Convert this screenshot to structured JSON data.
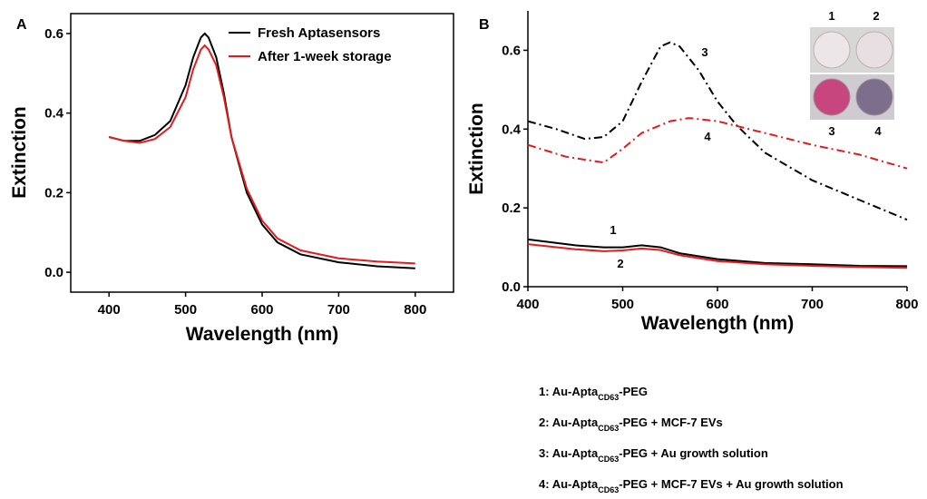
{
  "chart_data": [
    {
      "type": "line",
      "panel": "A",
      "x_label": "Wavelength (nm)",
      "y_label": "Extinction",
      "xlim": [
        350,
        850
      ],
      "ylim": [
        -0.05,
        0.65
      ],
      "xticks": [
        400,
        500,
        600,
        700,
        800
      ],
      "yticks": [
        {
          "value": 0,
          "label": "0.0"
        },
        0.2,
        0.4,
        0.6
      ],
      "axes_box": true,
      "legend": "upper right",
      "series": [
        {
          "name": "Fresh Aptasensors",
          "color": "#000000",
          "style": "solid",
          "x": [
            400,
            420,
            440,
            460,
            480,
            500,
            510,
            520,
            525,
            530,
            540,
            550,
            560,
            580,
            600,
            620,
            650,
            700,
            750,
            800
          ],
          "values": [
            0.34,
            0.33,
            0.33,
            0.345,
            0.38,
            0.47,
            0.54,
            0.59,
            0.6,
            0.59,
            0.54,
            0.45,
            0.34,
            0.2,
            0.12,
            0.075,
            0.045,
            0.025,
            0.015,
            0.01
          ]
        },
        {
          "name": "After 1-week storage",
          "color": "#e41a1c",
          "style": "solid",
          "x": [
            400,
            420,
            440,
            460,
            480,
            500,
            510,
            520,
            525,
            530,
            540,
            550,
            560,
            580,
            600,
            620,
            650,
            700,
            750,
            800
          ],
          "values": [
            0.34,
            0.33,
            0.325,
            0.335,
            0.365,
            0.44,
            0.51,
            0.56,
            0.57,
            0.56,
            0.52,
            0.44,
            0.34,
            0.21,
            0.13,
            0.085,
            0.055,
            0.035,
            0.027,
            0.022
          ]
        }
      ]
    },
    {
      "type": "line",
      "panel": "B",
      "x_label": "Wavelength (nm)",
      "y_label": "Extinction",
      "xlim": [
        400,
        800
      ],
      "ylim": [
        0,
        0.7
      ],
      "xticks": [
        400,
        500,
        600,
        700,
        800
      ],
      "yticks": [
        {
          "value": 0,
          "label": "0.0"
        },
        0.2,
        0.4,
        0.6
      ],
      "axes_box": false,
      "series": [
        {
          "name": "1",
          "color": "#000000",
          "style": "solid",
          "x": [
            400,
            450,
            480,
            500,
            520,
            540,
            560,
            600,
            650,
            700,
            750,
            800
          ],
          "values": [
            0.12,
            0.105,
            0.1,
            0.1,
            0.105,
            0.1,
            0.085,
            0.07,
            0.06,
            0.057,
            0.053,
            0.052
          ]
        },
        {
          "name": "2",
          "color": "#e41a1c",
          "style": "solid",
          "x": [
            400,
            450,
            480,
            500,
            520,
            540,
            560,
            600,
            650,
            700,
            750,
            800
          ],
          "values": [
            0.108,
            0.095,
            0.09,
            0.092,
            0.097,
            0.093,
            0.08,
            0.065,
            0.057,
            0.053,
            0.05,
            0.048
          ]
        },
        {
          "name": "3",
          "color": "#000000",
          "style": "dashdot",
          "x": [
            400,
            430,
            460,
            480,
            500,
            520,
            540,
            550,
            560,
            580,
            600,
            620,
            650,
            700,
            750,
            800
          ],
          "values": [
            0.42,
            0.4,
            0.375,
            0.38,
            0.42,
            0.52,
            0.61,
            0.62,
            0.61,
            0.55,
            0.47,
            0.41,
            0.34,
            0.27,
            0.22,
            0.17
          ]
        },
        {
          "name": "4",
          "color": "#e41a1c",
          "style": "dashdot",
          "x": [
            400,
            440,
            480,
            500,
            520,
            550,
            570,
            600,
            650,
            700,
            750,
            800
          ],
          "values": [
            0.36,
            0.33,
            0.315,
            0.35,
            0.39,
            0.42,
            0.428,
            0.42,
            0.39,
            0.36,
            0.335,
            0.3
          ]
        }
      ],
      "descriptions": [
        [
          "1: Au-Apta",
          "CD63",
          "-PEG"
        ],
        [
          "2: Au-Apta",
          "CD63",
          "-PEG  + MCF-7 EVs"
        ],
        [
          "3: Au-Apta",
          "CD63",
          "-PEG  + Au growth solution"
        ],
        [
          "4: Au-Apta",
          "CD63",
          "-PEG + MCF-7 EVs + Au growth solution"
        ]
      ]
    }
  ]
}
